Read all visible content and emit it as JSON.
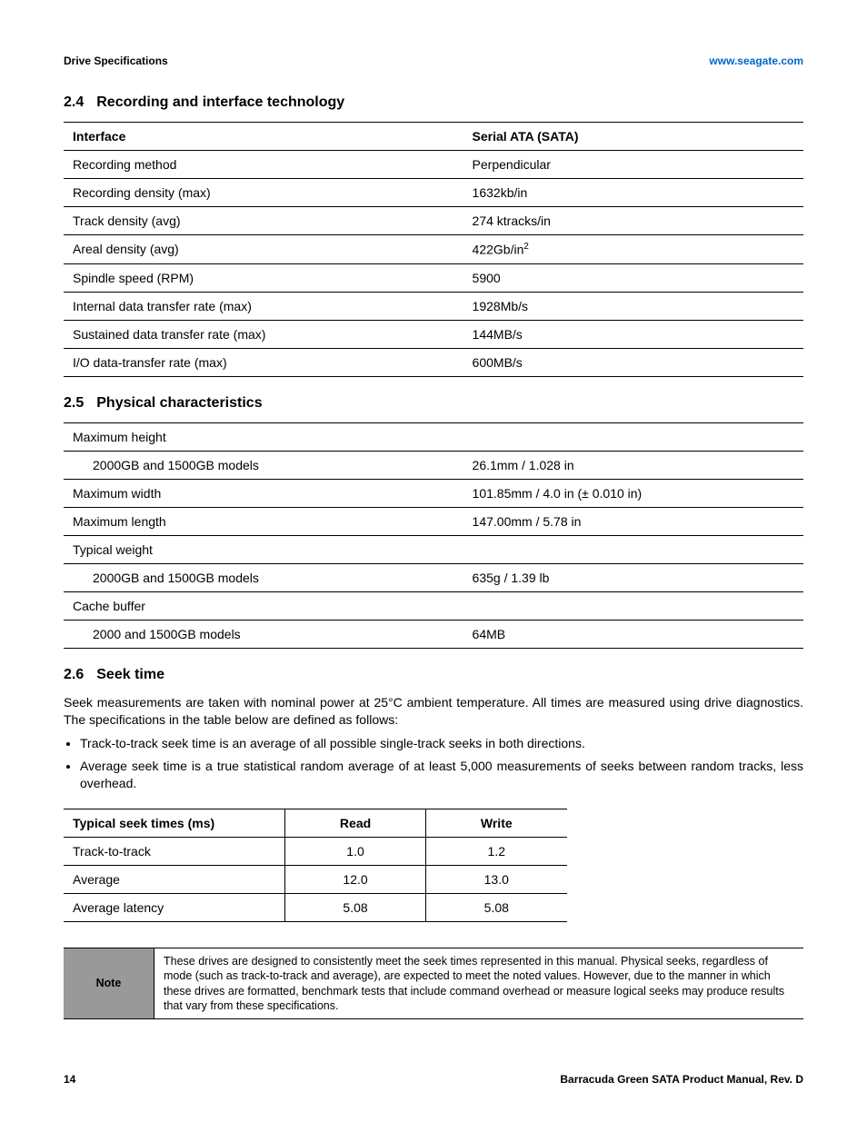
{
  "header": {
    "left": "Drive Specifications",
    "right": "www.seagate.com"
  },
  "section24": {
    "number": "2.4",
    "title": "Recording and interface technology",
    "header_row": {
      "label": "Interface",
      "value": "Serial ATA (SATA)"
    },
    "rows": [
      {
        "label": "Recording method",
        "value": "Perpendicular"
      },
      {
        "label": "Recording density (max)",
        "value": "1632kb/in"
      },
      {
        "label": "Track density (avg)",
        "value": "274 ktracks/in"
      },
      {
        "label": "Areal density (avg)",
        "value_html": "422Gb/in²"
      },
      {
        "label": "Spindle speed (RPM)",
        "value": "5900"
      },
      {
        "label": "Internal data transfer rate (max)",
        "value": "1928Mb/s"
      },
      {
        "label": "Sustained data transfer rate (max)",
        "value": "144MB/s"
      },
      {
        "label": "I/O data-transfer rate (max)",
        "value": "600MB/s"
      }
    ]
  },
  "section25": {
    "number": "2.5",
    "title": "Physical characteristics",
    "rows": [
      {
        "label": "Maximum height",
        "value": "",
        "indent": false
      },
      {
        "label": "2000GB and 1500GB models",
        "value": "26.1mm / 1.028 in",
        "indent": true
      },
      {
        "label": "Maximum width",
        "value": "101.85mm / 4.0 in (± 0.010 in)",
        "indent": false
      },
      {
        "label": "Maximum length",
        "value": "147.00mm / 5.78 in",
        "indent": false
      },
      {
        "label": "Typical weight",
        "value": "",
        "indent": false
      },
      {
        "label": "2000GB and 1500GB models",
        "value": "635g / 1.39 lb",
        "indent": true
      },
      {
        "label": "Cache buffer",
        "value": "",
        "indent": false
      },
      {
        "label": "2000 and 1500GB models",
        "value": "64MB",
        "indent": true
      }
    ]
  },
  "section26": {
    "number": "2.6",
    "title": "Seek time",
    "para": "Seek measurements are taken with nominal power at 25°C ambient temperature. All times are measured using drive diagnostics. The specifications in the table below are defined as follows:",
    "bullets": [
      "Track-to-track seek time is an average of all possible single-track seeks in both directions.",
      "Average seek time is a true statistical random average of at least 5,000 measurements of seeks between random tracks, less overhead."
    ],
    "table": {
      "headers": [
        "Typical seek times (ms)",
        "Read",
        "Write"
      ],
      "rows": [
        [
          "Track-to-track",
          "1.0",
          "1.2"
        ],
        [
          "Average",
          "12.0",
          "13.0"
        ],
        [
          "Average latency",
          "5.08",
          "5.08"
        ]
      ]
    },
    "note_label": "Note",
    "note_text": "These drives are designed to consistently meet the seek times represented in this manual. Physical seeks, regardless of mode (such as track-to-track and average), are expected to meet the noted values. However, due to the manner in which these drives are formatted, benchmark tests that include command overhead or measure logical seeks may produce results that vary from these specifications."
  },
  "footer": {
    "page": "14",
    "title": "Barracuda Green SATA Product Manual, Rev. D"
  },
  "colors": {
    "link": "#0066cc",
    "note_bg": "#999999",
    "border": "#000000",
    "text": "#000000",
    "bg": "#ffffff"
  }
}
